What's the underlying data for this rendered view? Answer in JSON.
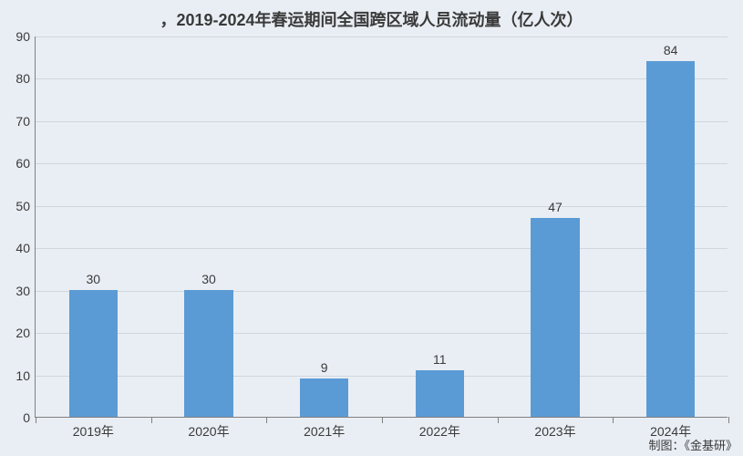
{
  "chart": {
    "type": "bar",
    "title": "，2019-2024年春运期间全国跨区域人员流动量（亿人次）",
    "title_fontsize": 18,
    "title_fontweight": "bold",
    "categories": [
      "2019年",
      "2020年",
      "2021年",
      "2022年",
      "2023年",
      "2024年"
    ],
    "values": [
      30,
      30,
      9,
      11,
      47,
      84
    ],
    "value_labels": [
      "30",
      "30",
      "9",
      "11",
      "47",
      "84"
    ],
    "bar_color": "#5b9bd5",
    "ylim": [
      0,
      90
    ],
    "ytick_step": 10,
    "yticks": [
      0,
      10,
      20,
      30,
      40,
      50,
      60,
      70,
      80,
      90
    ],
    "background_color": "#e9eef4",
    "grid_color": "#cfd6df",
    "axis_color": "#808080",
    "label_color": "#3a3a3a",
    "label_fontsize": 14,
    "axis_fontsize": 14,
    "bar_width_ratio": 0.42,
    "credit_text": "制图：《金基研》",
    "credit_fontsize": 13
  }
}
